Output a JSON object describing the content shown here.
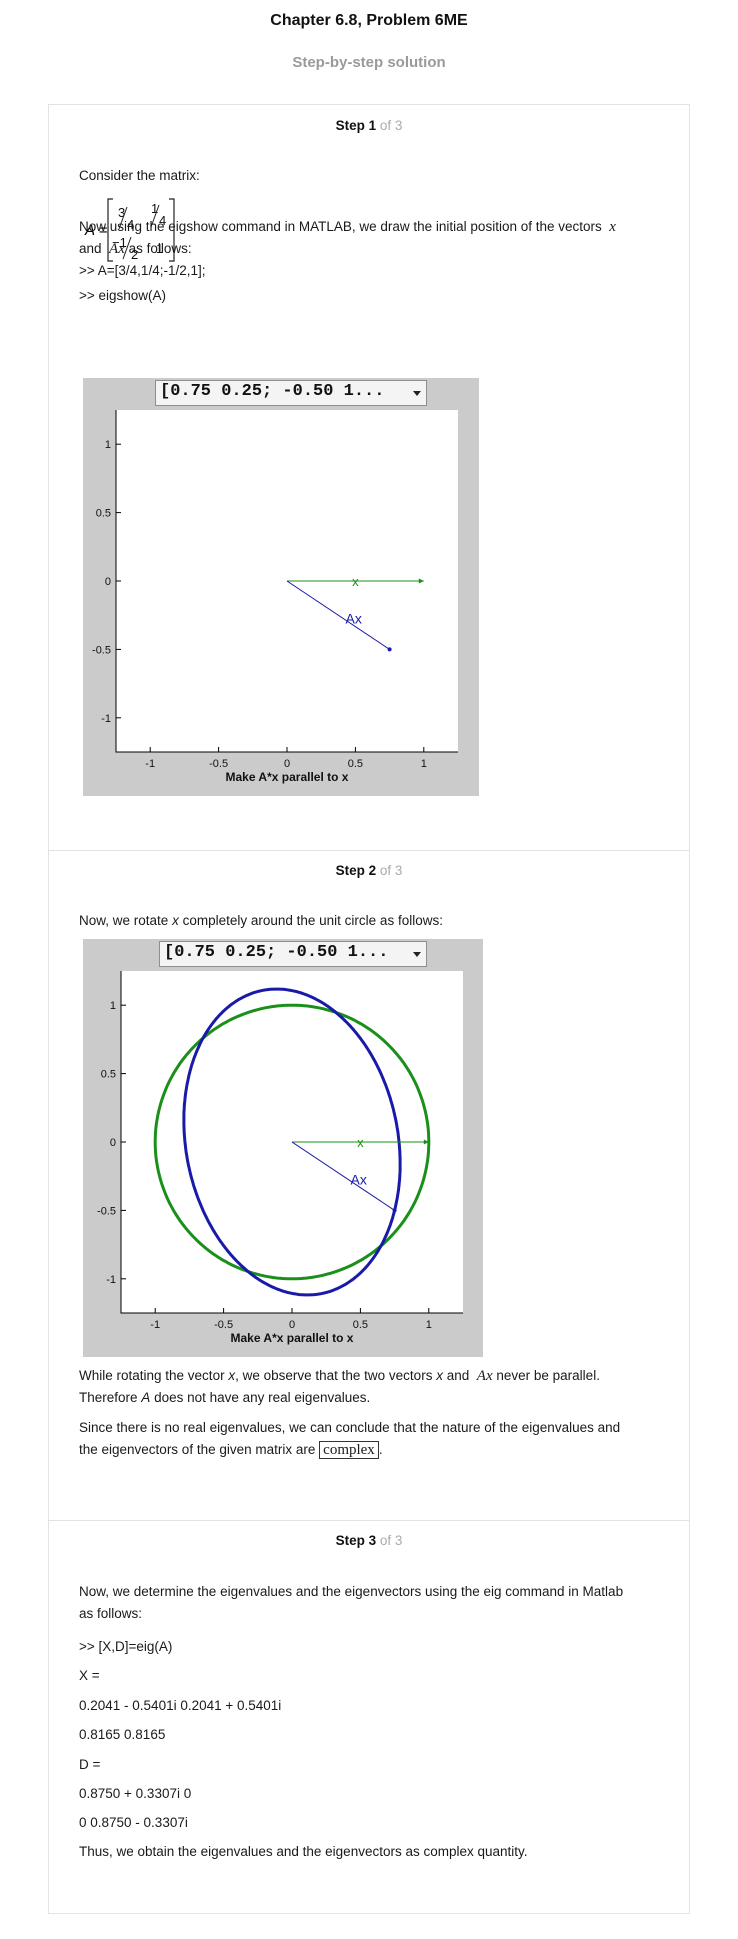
{
  "header": {
    "title": "Chapter 6.8, Problem 6ME",
    "subtitle": "Step-by-step solution"
  },
  "steps": [
    {
      "label": "Step 1",
      "of": "of 3",
      "text_consider": "Consider the matrix:",
      "matrix_label": "A =",
      "matrix": [
        [
          "3/4",
          "1/4"
        ],
        [
          "−1/2",
          "1"
        ]
      ],
      "text_using_a": "Now using the eigshow command in MATLAB, we draw the initial position of the vectors",
      "text_using_x": "x",
      "text_using_b": "and",
      "text_using_ax": "Ax",
      "text_using_c": "as follows:",
      "cmd1": ">> A=[3/4,1/4;-1/2,1];",
      "cmd2": ">> eigshow(A)"
    },
    {
      "label": "Step 2",
      "of": "of 3",
      "text_rotate_a": "Now, we rotate",
      "text_rotate_x": "x",
      "text_rotate_b": "completely around the unit circle as follows:",
      "text_while_a": "While rotating the vector",
      "text_while_x": "x",
      "text_while_b": ", we observe that the two vectors",
      "text_while_x2": "x",
      "text_while_c": "and",
      "text_while_ax": "Ax",
      "text_while_d": "never be parallel.",
      "text_therefore_a": "Therefore",
      "text_therefore_A": "A",
      "text_therefore_b": "does not have any real eigenvalues.",
      "text_since_1": "Since there is no real eigenvalues, we can conclude that the nature of the eigenvalues and",
      "text_since_2": "the eigenvectors of the given matrix are",
      "answer": "complex",
      "text_since_end": "."
    },
    {
      "label": "Step 3",
      "of": "of 3",
      "text_now": "Now, we determine the eigenvalues and the eigenvectors using the eig command in Matlab",
      "text_now2": "as follows:",
      "lines": [
        ">> [X,D]=eig(A)",
        "X =",
        "0.2041 - 0.5401i 0.2041 + 0.5401i",
        "0.8165 0.8165",
        "D =",
        "0.8750 + 0.3307i 0",
        "0 0.8750 - 0.3307i",
        "Thus, we obtain the eigenvalues and the eigenvectors as complex quantity."
      ]
    }
  ],
  "figures": [
    {
      "dropdown": "[0.75 0.25; -0.50 1...",
      "xlabel": "Make A*x parallel to x",
      "xticks": [
        "-1",
        "-0.5",
        "0",
        "0.5",
        "1"
      ],
      "yticks": [
        "1",
        "0.5",
        "0",
        "-0.5",
        "-1"
      ],
      "x_label_text": "x",
      "ax_label_text": "Ax",
      "x_vector": [
        1,
        0
      ],
      "ax_vector": [
        0.75,
        -0.5
      ]
    },
    {
      "dropdown": "[0.75 0.25; -0.50 1...",
      "xlabel": "Make A*x parallel to x",
      "xticks": [
        "-1",
        "-0.5",
        "0",
        "0.5",
        "1"
      ],
      "yticks": [
        "1",
        "0.5",
        "0",
        "-0.5",
        "-1"
      ],
      "x_label_text": "x",
      "ax_label_text": "Ax",
      "x_vector": [
        1,
        0
      ],
      "ax_vector": [
        0.75,
        -0.5
      ]
    }
  ],
  "colors": {
    "green": "#1a8f1a",
    "blue": "#1a1aa8",
    "panel": "#cbcbcb"
  }
}
